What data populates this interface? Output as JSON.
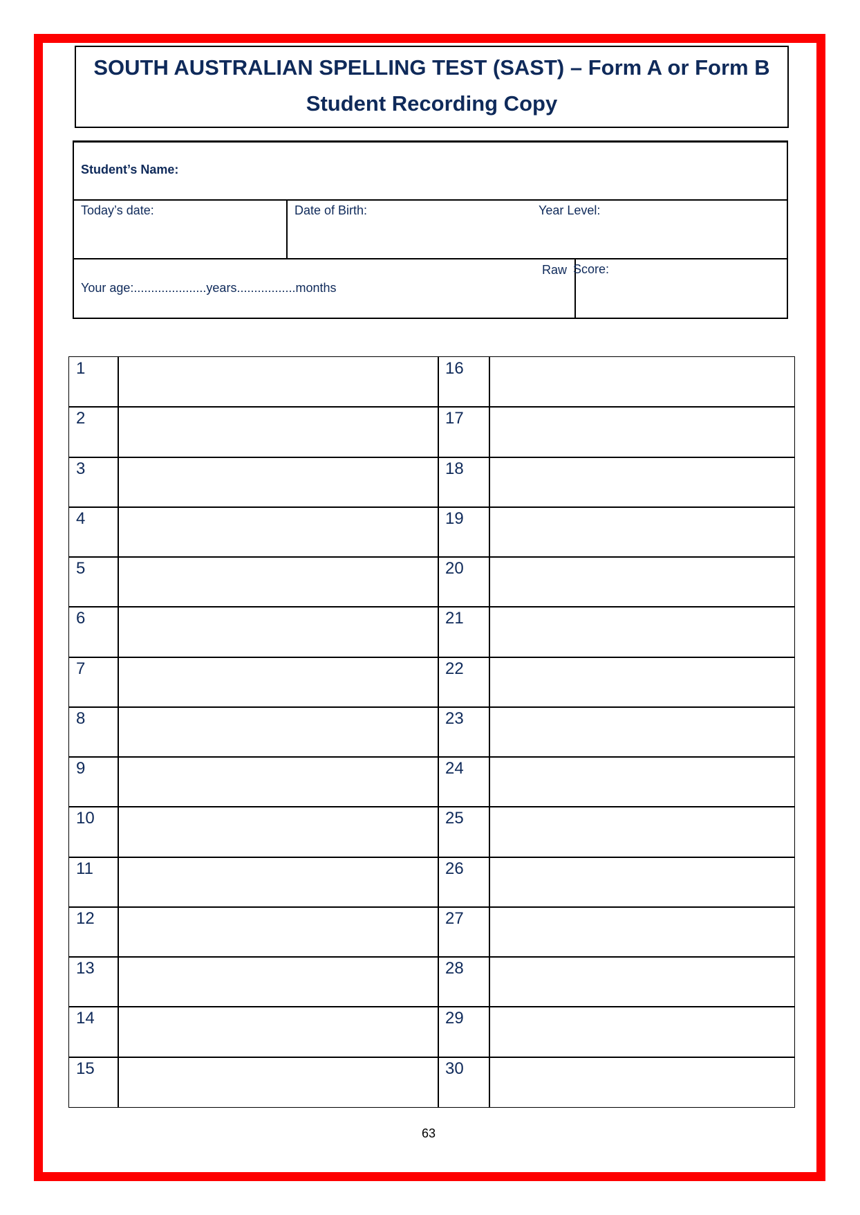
{
  "title": {
    "line1": "SOUTH AUSTRALIAN SPELLING TEST (SAST) – Form A or Form B",
    "line2": "Student Recording Copy"
  },
  "info": {
    "student_name": "Student’s Name:",
    "todays_date": "Today’s date:",
    "date_of_birth": "Date of Birth:",
    "year_level": "Year Level:",
    "your_age": "Your age:.....................years.................months",
    "raw": "Raw",
    "score": "Score:"
  },
  "rows_left": [
    "1",
    "2",
    "3",
    "4",
    "5",
    "6",
    "7",
    "8",
    "9",
    "10",
    "11",
    "12",
    "13",
    "14",
    "15"
  ],
  "rows_right": [
    "16",
    "17",
    "18",
    "19",
    "20",
    "21",
    "22",
    "23",
    "24",
    "25",
    "26",
    "27",
    "28",
    "29",
    "30"
  ],
  "page_number": "63",
  "colors": {
    "frame": "#fe0000",
    "text": "#0f2a5a"
  }
}
